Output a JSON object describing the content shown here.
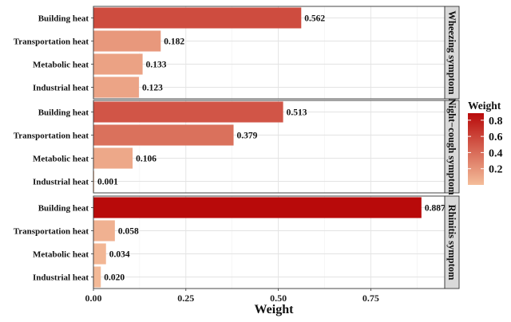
{
  "chart_data": {
    "type": "bar",
    "orientation": "horizontal",
    "xlabel": "Weight",
    "xlim": [
      0,
      0.95
    ],
    "xticks": [
      0.0,
      0.25,
      0.5,
      0.75
    ],
    "x_tick_labels": [
      "0.00",
      "0.25",
      "0.50",
      "0.75"
    ],
    "grid": true,
    "legend_position": "right",
    "legend": {
      "title": "Weight",
      "ticks": [
        0.8,
        0.6,
        0.4,
        0.2
      ],
      "tick_labels": [
        "0.8",
        "0.6",
        "0.4",
        "0.2"
      ],
      "range": [
        0.0,
        0.887
      ],
      "color_low": "#f4bd9a",
      "color_high": "#b80a0a"
    },
    "facets": [
      {
        "strip": "Wheezing symptom",
        "categories": [
          "Building heat",
          "Transportation heat",
          "Metabolic heat",
          "Industrial heat"
        ],
        "values": [
          0.562,
          0.182,
          0.133,
          0.123
        ],
        "labels": [
          "0.562",
          "0.182",
          "0.133",
          "0.123"
        ]
      },
      {
        "strip": "Night−cough symptom",
        "categories": [
          "Building heat",
          "Transportation heat",
          "Metabolic heat",
          "Industrial heat"
        ],
        "values": [
          0.513,
          0.379,
          0.106,
          0.001
        ],
        "labels": [
          "0.513",
          "0.379",
          "0.106",
          "0.001"
        ]
      },
      {
        "strip": "Rhinitis symptom",
        "categories": [
          "Building heat",
          "Transportation heat",
          "Metabolic heat",
          "Industrial heat"
        ],
        "values": [
          0.887,
          0.058,
          0.034,
          0.02
        ],
        "labels": [
          "0.887",
          "0.058",
          "0.034",
          "0.020"
        ]
      }
    ]
  }
}
